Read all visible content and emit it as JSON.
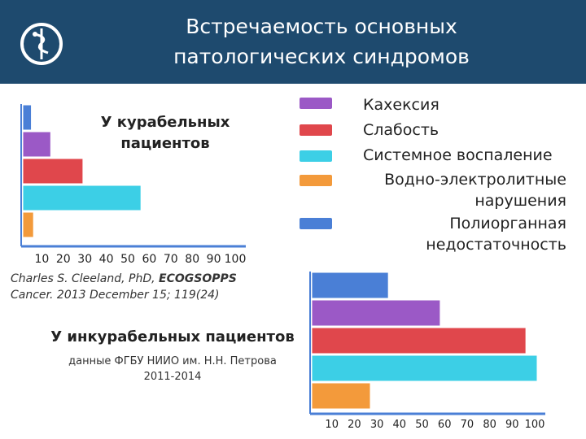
{
  "slide": {
    "title": "Встречаемость основных\nпатологических синдромов",
    "logo_icon": "caduceus-icon",
    "header_color": "#1e4a6e"
  },
  "legend": [
    {
      "label": "Кахексия",
      "color": "#9b59c6"
    },
    {
      "label": "Слабость",
      "color": "#e0474c"
    },
    {
      "label": "Системное воспаление",
      "color": "#3ccfe6"
    },
    {
      "label": "Водно-электролитные\nнарушения",
      "color": "#f39a3b"
    },
    {
      "label": "Полиорганная\nнедостаточность",
      "color": "#4a7fd6"
    }
  ],
  "annotations": {
    "citation_part1": "Charles S. Cleeland, PhD, ",
    "citation_bold": "ECOGSOPPS",
    "citation_part2": "Cancer. 2013 December 15; 119(24)",
    "source2": "данные ФГБУ НИИО им. Н.Н. Петрова\n2011-2014"
  },
  "chart_data": [
    {
      "type": "bar",
      "orientation": "horizontal",
      "title": "У курабельных\nпациентов",
      "x_ticks": [
        "10",
        "20",
        "30",
        "40",
        "50",
        "60",
        "70",
        "80",
        "90",
        "100"
      ],
      "xlim": [
        0,
        100
      ],
      "series": [
        {
          "name": "Полиорганная недостаточность",
          "value": 4,
          "color": "#4a7fd6"
        },
        {
          "name": "Кахексия",
          "value": 13,
          "color": "#9b59c6"
        },
        {
          "name": "Слабость",
          "value": 28,
          "color": "#e0474c"
        },
        {
          "name": "Системное воспаление",
          "value": 55,
          "color": "#3ccfe6"
        },
        {
          "name": "Водно-электролитные нарушения",
          "value": 5,
          "color": "#f39a3b"
        }
      ],
      "grid": false,
      "legend": "top-right"
    },
    {
      "type": "bar",
      "orientation": "horizontal",
      "title": "У инкурабельных пациентов",
      "x_ticks": [
        "10",
        "20",
        "30",
        "40",
        "50",
        "60",
        "70",
        "80",
        "90",
        "100"
      ],
      "xlim": [
        0,
        100
      ],
      "series": [
        {
          "name": "Полиорганная недостаточность",
          "value": 34,
          "color": "#4a7fd6"
        },
        {
          "name": "Кахексия",
          "value": 57,
          "color": "#9b59c6"
        },
        {
          "name": "Слабость",
          "value": 95,
          "color": "#e0474c"
        },
        {
          "name": "Системное воспаление",
          "value": 100,
          "color": "#3ccfe6"
        },
        {
          "name": "Водно-электролитные нарушения",
          "value": 26,
          "color": "#f39a3b"
        }
      ],
      "grid": false,
      "legend": "top-right"
    }
  ]
}
